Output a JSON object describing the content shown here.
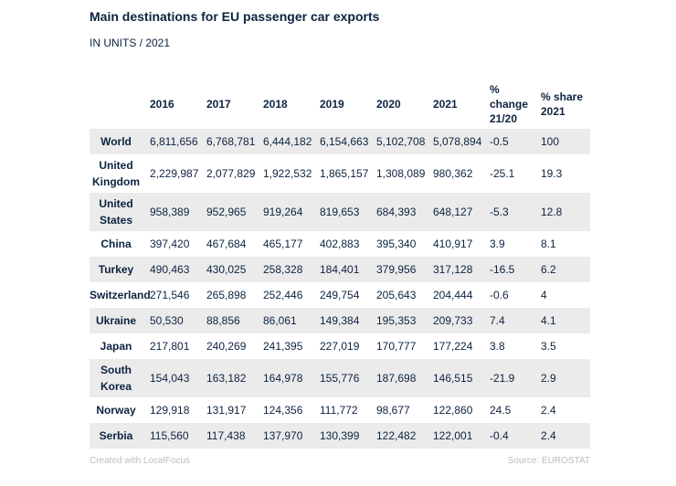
{
  "chart_data": {
    "type": "table",
    "title": "Main destinations for EU passenger car exports",
    "subtitle": "IN UNITS / 2021",
    "columns": [
      "",
      "2016",
      "2017",
      "2018",
      "2019",
      "2020",
      "2021",
      "% change 21/20",
      "% share 2021"
    ],
    "rows": [
      {
        "country": "World",
        "values": [
          "6,811,656",
          "6,768,781",
          "6,444,182",
          "6,154,663",
          "5,102,708",
          "5,078,894",
          "-0.5",
          "100"
        ]
      },
      {
        "country": "United Kingdom",
        "values": [
          "2,229,987",
          "2,077,829",
          "1,922,532",
          "1,865,157",
          "1,308,089",
          "980,362",
          "-25.1",
          "19.3"
        ]
      },
      {
        "country": "United States",
        "values": [
          "958,389",
          "952,965",
          "919,264",
          "819,653",
          "684,393",
          "648,127",
          "-5.3",
          "12.8"
        ]
      },
      {
        "country": "China",
        "values": [
          "397,420",
          "467,684",
          "465,177",
          "402,883",
          "395,340",
          "410,917",
          "3.9",
          "8.1"
        ]
      },
      {
        "country": "Turkey",
        "values": [
          "490,463",
          "430,025",
          "258,328",
          "184,401",
          "379,956",
          "317,128",
          "-16.5",
          "6.2"
        ]
      },
      {
        "country": "Switzerland",
        "values": [
          "271,546",
          "265,898",
          "252,446",
          "249,754",
          "205,643",
          "204,444",
          "-0.6",
          "4"
        ]
      },
      {
        "country": "Ukraine",
        "values": [
          "50,530",
          "88,856",
          "86,061",
          "149,384",
          "195,353",
          "209,733",
          "7.4",
          "4.1"
        ]
      },
      {
        "country": "Japan",
        "values": [
          "217,801",
          "240,269",
          "241,395",
          "227,019",
          "170,777",
          "177,224",
          "3.8",
          "3.5"
        ]
      },
      {
        "country": "South Korea",
        "values": [
          "154,043",
          "163,182",
          "164,978",
          "155,776",
          "187,698",
          "146,515",
          "-21.9",
          "2.9"
        ]
      },
      {
        "country": "Norway",
        "values": [
          "129,918",
          "131,917",
          "124,356",
          "111,772",
          "98,677",
          "122,860",
          "24.5",
          "2.4"
        ]
      },
      {
        "country": "Serbia",
        "values": [
          "115,560",
          "117,438",
          "137,970",
          "130,399",
          "122,482",
          "122,001",
          "-0.4",
          "2.4"
        ]
      }
    ]
  },
  "footer": {
    "created_with": "Created with LocalFocus",
    "source": "Source:  EUROSTAT"
  },
  "colors": {
    "text": "#0c2340",
    "row_shade": "#ebebeb",
    "footer_text": "#bdbdbd"
  }
}
